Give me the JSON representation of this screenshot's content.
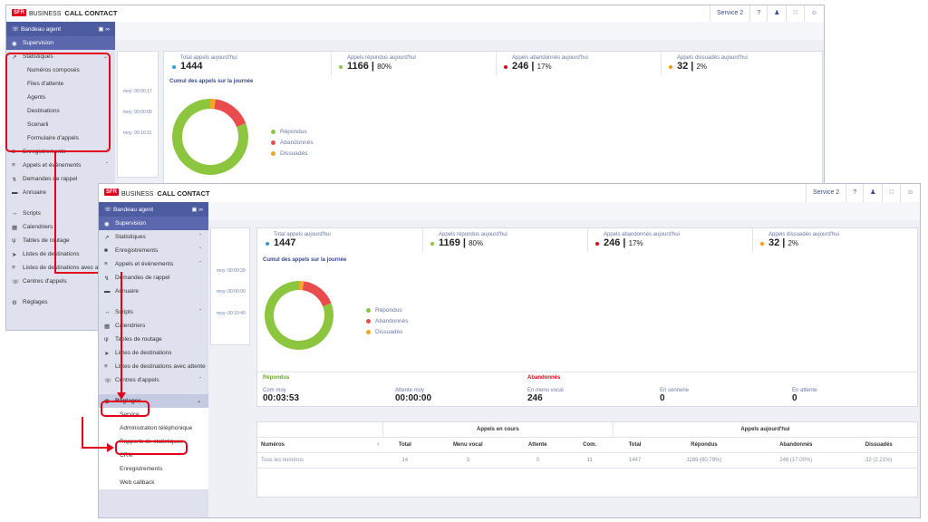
{
  "app": {
    "logo": "SFR",
    "brand": "BUSINESS",
    "title": "CALL CONTACT"
  },
  "topbar": {
    "service": "Service 2"
  },
  "sidebar": {
    "bandeau": "Bandeau agent",
    "supervision": "Supervision",
    "statistiques": "Statistiques",
    "stats_sub": [
      "Numéros composés",
      "Files d'attente",
      "Agents",
      "Destinations",
      "Scenarii",
      "Formulaire d'appels"
    ],
    "enregistrements": "Enregistrements",
    "appels": "Appels et évènements",
    "demandes": "Demandes de rappel",
    "annuaire": "Annuaire",
    "scripts": "Scripts",
    "calendriers": "Calendriers",
    "tables": "Tables de routage",
    "listes": "Listes de destinations",
    "listes_att": "Listes de destinations avec attente",
    "centres": "Centres d'appels",
    "reglages": "Réglages",
    "reglages_sub": [
      "Service",
      "Administration téléphonique",
      "Rapports de statistiques",
      "CRM",
      "Enregistrements",
      "Web callback"
    ]
  },
  "win1": {
    "kpis": [
      {
        "title": "Total appels aujourd'hui",
        "value": "1444",
        "pct": "",
        "color": "#2d9be0"
      },
      {
        "title": "Appels répondus aujourd'hui",
        "value": "1166",
        "pct": "80%",
        "color": "#8cc63f"
      },
      {
        "title": "Appels abandonnés aujourd'hui",
        "value": "246",
        "pct": "17%",
        "color": "#e2001a"
      },
      {
        "title": "Appels dissuadés aujourd'hui",
        "value": "32",
        "pct": "2%",
        "color": "#f39c12"
      }
    ],
    "mini": [
      "moy: 00:00:17",
      "moy: 00:00:00",
      "moy: 00:10:11"
    ]
  },
  "win2": {
    "kpis": [
      {
        "title": "Total appels aujourd'hui",
        "value": "1447",
        "pct": "",
        "color": "#2d9be0"
      },
      {
        "title": "Appels répondus aujourd'hui",
        "value": "1169",
        "pct": "80%",
        "color": "#8cc63f"
      },
      {
        "title": "Appels abandonnés aujourd'hui",
        "value": "246",
        "pct": "17%",
        "color": "#e2001a"
      },
      {
        "title": "Appels dissuadés aujourd'hui",
        "value": "32",
        "pct": "2%",
        "color": "#f39c12"
      }
    ],
    "mini": [
      "moy: 00:00:39",
      "moy: 00:00:00",
      "moy: 00:10:40"
    ],
    "repondus": {
      "label": "Répondus",
      "com_label": "Com moy",
      "com": "00:03:53",
      "att_label": "Attente moy",
      "att": "00:00:00"
    },
    "abandonnes": {
      "label": "Abandonnés",
      "menu_label": "En menu vocal",
      "menu": "246",
      "sonnerie_label": "En sonnerie",
      "sonnerie": "0",
      "attente_label": "En attente",
      "attente": "0"
    },
    "table": {
      "group1": "Appels en cours",
      "group2": "Appels aujourd'hui",
      "headers": [
        "Numéros",
        "Total",
        "Menu vocal",
        "Attente",
        "Com.",
        "Total",
        "Répondus",
        "Abandonnés",
        "Dissuadés"
      ],
      "row": [
        "Tous les numéros",
        "14",
        "3",
        "0",
        "11",
        "1447",
        "1169 (80.79%)",
        "246 (17.00%)",
        "32 (2.21%)"
      ]
    }
  },
  "chart": {
    "title": "Cumul des appels sur la journée",
    "legend": [
      "Répondus",
      "Abandonnés",
      "Dissuadés"
    ]
  },
  "chart_data": [
    {
      "type": "pie",
      "title": "Cumul des appels sur la journée",
      "categories": [
        "Répondus",
        "Abandonnés",
        "Dissuadés"
      ],
      "values": [
        1166,
        246,
        32
      ],
      "colors": [
        "#8cc63f",
        "#e84c4c",
        "#f5a623"
      ]
    },
    {
      "type": "pie",
      "title": "Cumul des appels sur la journée",
      "categories": [
        "Répondus",
        "Abandonnés",
        "Dissuadés"
      ],
      "values": [
        1169,
        246,
        32
      ],
      "colors": [
        "#8cc63f",
        "#e84c4c",
        "#f5a623"
      ]
    }
  ]
}
